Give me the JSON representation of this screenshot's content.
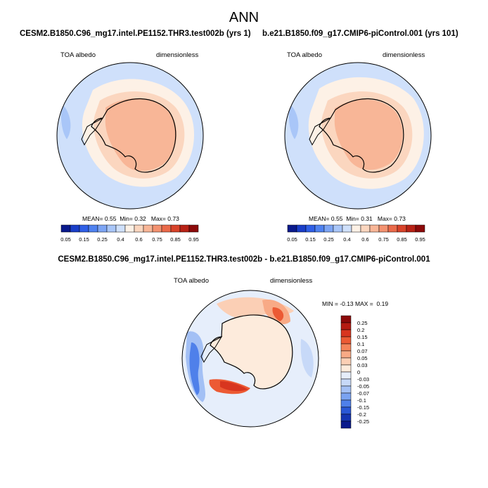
{
  "main_title": "ANN",
  "panels": [
    {
      "title": "CESM2.B1850.C96_mg17.intel.PE1152.THR3.test002b (yrs 1)",
      "var_label": "TOA albedo",
      "units_label": "dimensionless",
      "stats": {
        "mean_label": "MEAN=",
        "mean": "0.55",
        "min_label": "Min=",
        "min": "0.32",
        "max_label": "Max=",
        "max": "0.73"
      }
    },
    {
      "title": "b.e21.B1850.f09_g17.CMIP6-piControl.001 (yrs 101)",
      "var_label": "TOA albedo",
      "units_label": "dimensionless",
      "stats": {
        "mean_label": "MEAN=",
        "mean": "0.55",
        "min_label": "Min=",
        "min": "0.31",
        "max_label": "Max=",
        "max": "0.73"
      }
    }
  ],
  "diff_panel": {
    "title": "CESM2.B1850.C96_mg17.intel.PE1152.THR3.test002b - b.e21.B1850.f09_g17.CMIP6-piControl.001",
    "var_label": "TOA albedo",
    "units_label": "dimensionless",
    "minmax": {
      "min_label": "MIN =",
      "min": "-0.13",
      "max_label": "MAX =",
      "max": "0.19"
    }
  },
  "abs_colorbar": {
    "labels": [
      "0.05",
      "0.15",
      "0.25",
      "0.4",
      "0.6",
      "0.75",
      "0.85",
      "0.95"
    ],
    "colors": [
      "#0a1a8c",
      "#1a3ec8",
      "#2f5fe6",
      "#4f82f0",
      "#7da5f4",
      "#a9c6f8",
      "#cfe0fb",
      "#fdf1e6",
      "#fbd6bf",
      "#f8b697",
      "#f39270",
      "#ea6a4a",
      "#d8432a",
      "#b82216",
      "#8c0a0a"
    ]
  },
  "diff_colorbar": {
    "labels": [
      "0.25",
      "0.2",
      "0.15",
      "0.1",
      "0.07",
      "0.05",
      "0.03",
      "0",
      "-0.03",
      "-0.05",
      "-0.07",
      "-0.1",
      "-0.15",
      "-0.2",
      "-0.25"
    ],
    "colors": [
      "#8c0a0a",
      "#b51b12",
      "#d8351f",
      "#ec5a34",
      "#f5845a",
      "#f8aa86",
      "#fbcfb5",
      "#fdebdc",
      "#e6eefb",
      "#c7d9f8",
      "#a3c0f5",
      "#7aa3f1",
      "#4f80ea",
      "#2a58d6",
      "#1535b2",
      "#0a1a8c"
    ]
  }
}
